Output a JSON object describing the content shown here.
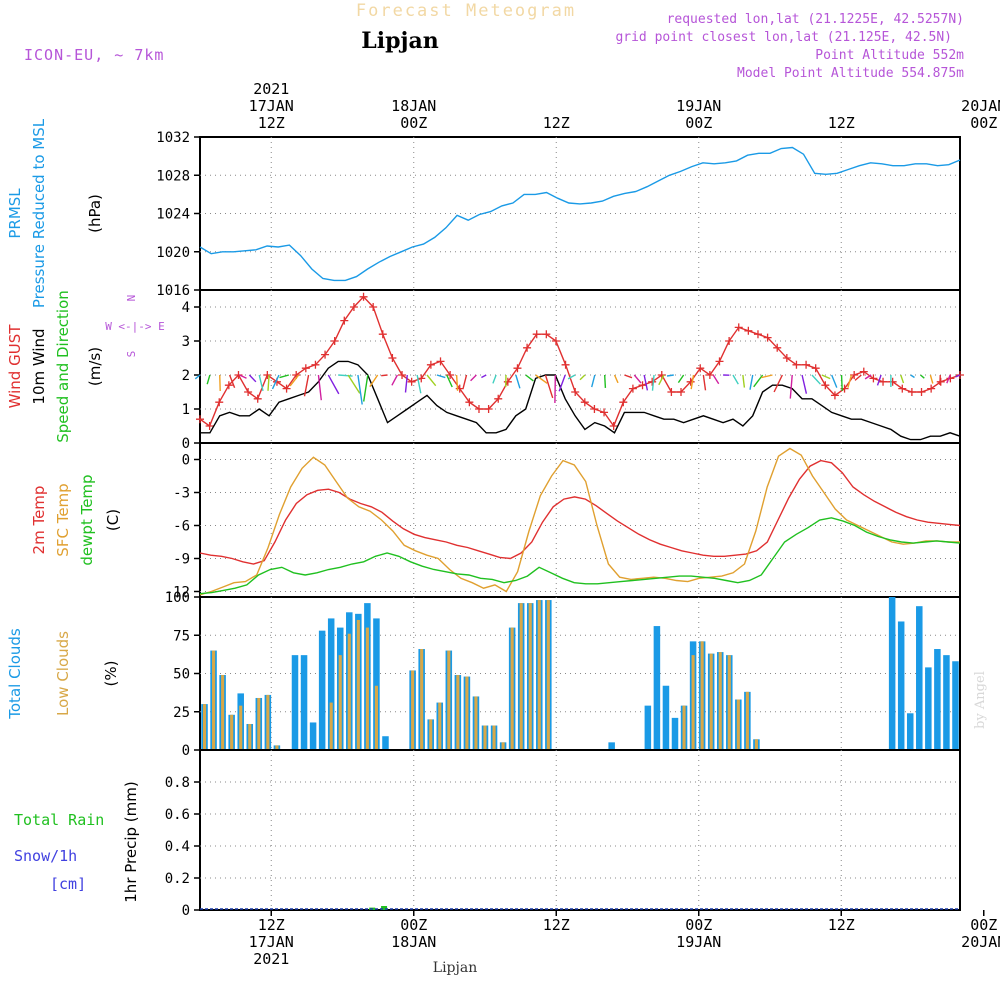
{
  "header": {
    "title": "Forecast Meteogram",
    "location": "Lipjan",
    "model": "ICON-EU, ~ 7km",
    "requested": "requested lon,lat (21.1225E, 42.5257N)",
    "grid_point": "grid point closest lon,lat (21.125E, 42.5N)",
    "point_altitude": "Point Altitude 552m",
    "model_altitude": "Model Point Altitude 554.875m",
    "watermark": "by Angel",
    "bottom_label": "Lipjan"
  },
  "colors": {
    "pressure": "#1a9ae6",
    "gust": "#e03030",
    "wind": "#000000",
    "temp2m": "#e03030",
    "sfc": "#e0a030",
    "dewpt": "#20c020",
    "total_clouds": "#1a9ae6",
    "low_clouds": "#d8a848",
    "rain": "#20c020",
    "snow": "#4040e0",
    "purple": "#b655d8"
  },
  "time_axis": {
    "hours_start": 6,
    "hours_end": 70,
    "top_labels": [
      {
        "hour": 12,
        "lines": [
          "2021",
          "17JAN",
          "12Z"
        ]
      },
      {
        "hour": 24,
        "lines": [
          "18JAN",
          "00Z"
        ]
      },
      {
        "hour": 36,
        "lines": [
          "12Z"
        ]
      },
      {
        "hour": 48,
        "lines": [
          "19JAN",
          "00Z"
        ]
      },
      {
        "hour": 60,
        "lines": [
          "12Z"
        ]
      },
      {
        "hour": 72,
        "lines": [
          "20JAN",
          "00Z"
        ]
      }
    ],
    "bottom_labels": [
      {
        "hour": 12,
        "lines": [
          "12Z",
          "17JAN",
          "2021"
        ]
      },
      {
        "hour": 24,
        "lines": [
          "00Z",
          "18JAN"
        ]
      },
      {
        "hour": 36,
        "lines": [
          "12Z"
        ]
      },
      {
        "hour": 48,
        "lines": [
          "00Z",
          "19JAN"
        ]
      },
      {
        "hour": 60,
        "lines": [
          "12Z"
        ]
      },
      {
        "hour": 72,
        "lines": [
          "00Z",
          "20JAN"
        ]
      }
    ]
  },
  "chart_data": [
    {
      "type": "line",
      "panel": "pressure",
      "ylabel_left": [
        "PRMSL",
        "Pressure Reduced to MSL"
      ],
      "ylabel_unit": "(hPa)",
      "ylim": [
        1016,
        1032
      ],
      "yticks": [
        1016,
        1020,
        1024,
        1028,
        1032
      ],
      "series": [
        {
          "name": "PRMSL",
          "values": [
            1020.5,
            1019.8,
            1020.0,
            1020.0,
            1020.1,
            1020.2,
            1020.6,
            1020.5,
            1020.7,
            1019.6,
            1018.2,
            1017.2,
            1017.0,
            1017.0,
            1017.4,
            1018.2,
            1018.9,
            1019.5,
            1020.0,
            1020.5,
            1020.8,
            1021.5,
            1022.5,
            1023.8,
            1023.3,
            1023.9,
            1024.2,
            1024.8,
            1025.1,
            1026.0,
            1026.0,
            1026.2,
            1025.6,
            1025.1,
            1025.0,
            1025.1,
            1025.3,
            1025.8,
            1026.1,
            1026.3,
            1026.8,
            1027.4,
            1028.0,
            1028.4,
            1028.9,
            1029.3,
            1029.2,
            1029.3,
            1029.5,
            1030.1,
            1030.3,
            1030.3,
            1030.8,
            1030.9,
            1030.2,
            1028.2,
            1028.1,
            1028.2,
            1028.6,
            1029.0,
            1029.3,
            1029.2,
            1029.0,
            1029.0,
            1029.2,
            1029.2,
            1029.0,
            1029.1,
            1029.6
          ]
        }
      ]
    },
    {
      "type": "line",
      "panel": "wind",
      "ylabel_left": [
        "Wind GUST",
        "10m Wind",
        "Speed and Direction"
      ],
      "ylabel_unit": "(m/s)",
      "compass": [
        "N",
        "W <-|-> E",
        "S"
      ],
      "ylim": [
        0,
        4.5
      ],
      "yticks": [
        0,
        1,
        2,
        3,
        4
      ],
      "series": [
        {
          "name": "Wind GUST",
          "values": [
            0.7,
            0.5,
            1.2,
            1.7,
            2.0,
            1.5,
            1.3,
            2.0,
            1.8,
            1.6,
            2.0,
            2.2,
            2.3,
            2.6,
            3.0,
            3.6,
            4.0,
            4.3,
            4.0,
            3.2,
            2.5,
            2.0,
            1.8,
            1.9,
            2.3,
            2.4,
            2.0,
            1.6,
            1.2,
            1.0,
            1.0,
            1.3,
            1.8,
            2.2,
            2.8,
            3.2,
            3.2,
            3.0,
            2.3,
            1.5,
            1.2,
            1.0,
            0.9,
            0.5,
            1.2,
            1.6,
            1.7,
            1.8,
            2.0,
            1.5,
            1.5,
            1.8,
            2.2,
            2.0,
            2.4,
            3.0,
            3.4,
            3.3,
            3.2,
            3.1,
            2.8,
            2.5,
            2.3,
            2.3,
            2.2,
            1.7,
            1.4,
            1.6,
            2.0,
            2.1,
            1.9,
            1.8,
            1.8,
            1.6,
            1.5,
            1.5,
            1.6,
            1.8,
            1.9,
            2.0
          ]
        },
        {
          "name": "10m Wind",
          "values": [
            0.3,
            0.3,
            0.8,
            0.9,
            0.8,
            0.8,
            1.0,
            0.8,
            1.2,
            1.3,
            1.4,
            1.5,
            1.8,
            2.2,
            2.4,
            2.4,
            2.3,
            2.0,
            1.3,
            0.6,
            0.8,
            1.0,
            1.2,
            1.4,
            1.1,
            0.9,
            0.8,
            0.7,
            0.6,
            0.3,
            0.3,
            0.4,
            0.8,
            1.0,
            1.9,
            2.0,
            2.0,
            1.3,
            0.8,
            0.4,
            0.6,
            0.5,
            0.3,
            0.9,
            0.9,
            0.9,
            0.8,
            0.7,
            0.7,
            0.6,
            0.7,
            0.8,
            0.7,
            0.6,
            0.7,
            0.5,
            0.8,
            1.5,
            1.7,
            1.7,
            1.6,
            1.3,
            1.3,
            1.1,
            0.9,
            0.8,
            0.7,
            0.7,
            0.6,
            0.5,
            0.4,
            0.2,
            0.1,
            0.1,
            0.2,
            0.2,
            0.3,
            0.2
          ]
        }
      ]
    },
    {
      "type": "line",
      "panel": "temperature",
      "ylabel_left": [
        "2m Temp",
        "SFC Temp",
        "dewpt Temp"
      ],
      "ylabel_unit": "(C)",
      "ylim": [
        -12.5,
        1.5
      ],
      "yticks": [
        -12,
        -9,
        -6,
        -3,
        0
      ],
      "series": [
        {
          "name": "2m Temp",
          "values": [
            -8.5,
            -8.7,
            -8.8,
            -9.0,
            -9.3,
            -9.5,
            -9.2,
            -7.5,
            -5.5,
            -4.0,
            -3.2,
            -2.8,
            -2.7,
            -3.0,
            -3.6,
            -4.0,
            -4.3,
            -4.8,
            -5.6,
            -6.3,
            -6.8,
            -7.1,
            -7.3,
            -7.5,
            -7.8,
            -8.0,
            -8.3,
            -8.6,
            -8.9,
            -9.0,
            -8.5,
            -7.5,
            -5.7,
            -4.3,
            -3.6,
            -3.4,
            -3.6,
            -4.2,
            -4.9,
            -5.6,
            -6.2,
            -6.8,
            -7.3,
            -7.7,
            -8.0,
            -8.3,
            -8.5,
            -8.7,
            -8.8,
            -8.8,
            -8.7,
            -8.6,
            -8.3,
            -7.5,
            -5.5,
            -3.5,
            -1.8,
            -0.6,
            -0.1,
            -0.3,
            -1.2,
            -2.5,
            -3.2,
            -3.8,
            -4.3,
            -4.8,
            -5.2,
            -5.5,
            -5.7,
            -5.8,
            -5.9,
            -6.0
          ]
        },
        {
          "name": "SFC Temp",
          "values": [
            -12.3,
            -12.0,
            -11.6,
            -11.2,
            -11.1,
            -10.5,
            -8.0,
            -5.0,
            -2.5,
            -0.8,
            0.2,
            -0.5,
            -2.0,
            -3.5,
            -4.3,
            -4.7,
            -5.5,
            -6.5,
            -7.8,
            -8.3,
            -8.7,
            -9.0,
            -10.0,
            -10.8,
            -11.2,
            -11.7,
            -11.4,
            -12.0,
            -10.2,
            -6.5,
            -3.3,
            -1.5,
            -0.1,
            -0.5,
            -2.0,
            -6.0,
            -9.5,
            -10.7,
            -10.9,
            -10.8,
            -10.7,
            -10.8,
            -11.0,
            -11.1,
            -10.8,
            -10.7,
            -10.6,
            -10.3,
            -9.5,
            -6.5,
            -2.5,
            0.3,
            1.0,
            0.4,
            -1.5,
            -3.0,
            -4.5,
            -5.5,
            -6.0,
            -6.5,
            -7.0,
            -7.5,
            -7.7,
            -7.6,
            -7.4,
            -7.4,
            -7.5,
            -7.5
          ]
        },
        {
          "name": "dewpt Temp",
          "values": [
            -12.2,
            -12.1,
            -11.9,
            -11.7,
            -11.4,
            -10.5,
            -10.0,
            -9.8,
            -10.3,
            -10.5,
            -10.3,
            -10.0,
            -9.8,
            -9.5,
            -9.3,
            -8.8,
            -8.5,
            -8.8,
            -9.3,
            -9.7,
            -10.0,
            -10.2,
            -10.4,
            -10.5,
            -10.8,
            -10.9,
            -11.2,
            -11.0,
            -10.6,
            -9.8,
            -10.3,
            -10.8,
            -11.2,
            -11.3,
            -11.3,
            -11.2,
            -11.1,
            -11.0,
            -10.9,
            -10.8,
            -10.7,
            -10.6,
            -10.6,
            -10.7,
            -10.8,
            -11.0,
            -11.2,
            -11.0,
            -10.5,
            -9.0,
            -7.5,
            -6.8,
            -6.2,
            -5.5,
            -5.3,
            -5.6,
            -6.0,
            -6.6,
            -7.0,
            -7.3,
            -7.5,
            -7.6,
            -7.5,
            -7.4,
            -7.5,
            -7.6
          ]
        }
      ]
    },
    {
      "type": "bar",
      "panel": "clouds",
      "ylabel_left": [
        "Total Clouds",
        "Low Clouds"
      ],
      "ylabel_unit": "(%)",
      "ylim": [
        0,
        100
      ],
      "yticks": [
        0,
        25,
        50,
        75,
        100
      ],
      "series": [
        {
          "name": "Total Clouds",
          "values": [
            30,
            65,
            49,
            23,
            37,
            17,
            34,
            36,
            3,
            0,
            62,
            62,
            18,
            78,
            86,
            80,
            90,
            89,
            96,
            86,
            9,
            0,
            0,
            52,
            66,
            20,
            31,
            65,
            49,
            48,
            35,
            16,
            16,
            5,
            80,
            96,
            96,
            98,
            98,
            0,
            0,
            0,
            0,
            0,
            0,
            5,
            0,
            0,
            0,
            29,
            81,
            42,
            21,
            29,
            71,
            71,
            63,
            64,
            62,
            33,
            38,
            7,
            0,
            0,
            0,
            0,
            0,
            0,
            0,
            0,
            0,
            0,
            0,
            0,
            0,
            0,
            100,
            84,
            24,
            94,
            54,
            66,
            62,
            58
          ]
        },
        {
          "name": "Low Clouds",
          "values": [
            30,
            65,
            49,
            23,
            29,
            17,
            34,
            36,
            3,
            0,
            0,
            0,
            0,
            0,
            31,
            62,
            76,
            85,
            80,
            42,
            0,
            0,
            0,
            52,
            66,
            20,
            31,
            65,
            49,
            48,
            35,
            16,
            16,
            5,
            80,
            96,
            96,
            98,
            98,
            0,
            0,
            0,
            0,
            0,
            0,
            0,
            0,
            0,
            0,
            0,
            0,
            0,
            0,
            29,
            62,
            71,
            63,
            64,
            62,
            33,
            38,
            7,
            0,
            0,
            0,
            0,
            0,
            0,
            0,
            0,
            0,
            0,
            0,
            0,
            0,
            0,
            0,
            0,
            0,
            0,
            0,
            0,
            0,
            0
          ]
        }
      ]
    },
    {
      "type": "bar",
      "panel": "precip",
      "ylabel_left": [
        "Total Rain",
        "Snow/1h",
        "[cm]"
      ],
      "ylabel_unit": "1hr Precip (mm)",
      "ylim": [
        0,
        1
      ],
      "yticks": [
        0,
        0.2,
        0.4,
        0.6,
        0.8
      ],
      "series": [
        {
          "name": "Total Rain",
          "values": [
            {
              "hour": 20.5,
              "value": 0.015
            },
            {
              "hour": 21.5,
              "value": 0.025
            }
          ]
        }
      ]
    }
  ]
}
